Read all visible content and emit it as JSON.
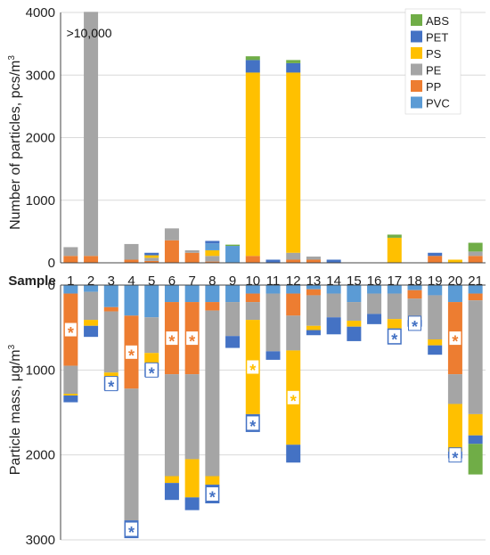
{
  "chart_data": [
    {
      "type": "bar",
      "stacked": true,
      "ylabel_parts": [
        "Number of particles, pcs/m",
        "3"
      ],
      "ylim": [
        0,
        4000
      ],
      "yticks": [
        0,
        1000,
        2000,
        3000,
        4000
      ],
      "categories": [
        "1",
        "2",
        "3",
        "4",
        "5",
        "6",
        "7",
        "8",
        "9",
        "10",
        "11",
        "12",
        "13",
        "14",
        "15",
        "16",
        "17",
        "18",
        "19",
        "20",
        "21"
      ],
      "series": [
        {
          "name": "PP",
          "values": [
            110,
            110,
            0,
            50,
            30,
            360,
            160,
            20,
            0,
            110,
            0,
            50,
            50,
            0,
            0,
            0,
            0,
            0,
            110,
            0,
            110
          ]
        },
        {
          "name": "PE",
          "values": [
            140,
            3900,
            0,
            250,
            50,
            190,
            40,
            90,
            0,
            0,
            0,
            110,
            50,
            0,
            0,
            0,
            0,
            0,
            0,
            0,
            70
          ]
        },
        {
          "name": "PS",
          "values": [
            0,
            0,
            0,
            0,
            40,
            0,
            0,
            90,
            0,
            2930,
            0,
            2880,
            0,
            0,
            0,
            0,
            400,
            0,
            0,
            50,
            0
          ]
        },
        {
          "name": "PVC",
          "values": [
            0,
            0,
            0,
            0,
            0,
            0,
            0,
            110,
            270,
            0,
            0,
            0,
            0,
            0,
            0,
            0,
            0,
            0,
            0,
            0,
            0
          ]
        },
        {
          "name": "PET",
          "values": [
            0,
            0,
            0,
            0,
            40,
            0,
            0,
            40,
            0,
            200,
            50,
            150,
            0,
            50,
            0,
            0,
            0,
            0,
            50,
            0,
            0
          ]
        },
        {
          "name": "ABS",
          "values": [
            0,
            0,
            0,
            0,
            0,
            0,
            0,
            0,
            20,
            60,
            0,
            50,
            0,
            0,
            0,
            0,
            50,
            0,
            0,
            0,
            140
          ]
        }
      ],
      "annotations": [
        {
          "category": "2",
          "text": ">10,000"
        }
      ],
      "legend_position": "top-right"
    },
    {
      "type": "bar",
      "stacked": true,
      "inverted": true,
      "ylabel_parts": [
        "Particle mass, μg/m",
        "3"
      ],
      "ylim": [
        0,
        3000
      ],
      "yticks": [
        0,
        1000,
        2000,
        3000
      ],
      "categories": [
        "1",
        "2",
        "3",
        "4",
        "5",
        "6",
        "7",
        "8",
        "9",
        "10",
        "11",
        "12",
        "13",
        "14",
        "15",
        "16",
        "17",
        "18",
        "19",
        "20",
        "21"
      ],
      "series": [
        {
          "name": "PVC",
          "values": [
            100,
            80,
            260,
            360,
            380,
            200,
            200,
            200,
            200,
            100,
            100,
            100,
            50,
            100,
            200,
            100,
            100,
            60,
            120,
            200,
            100
          ]
        },
        {
          "name": "PP",
          "values": [
            850,
            0,
            50,
            860,
            0,
            850,
            850,
            100,
            0,
            100,
            0,
            260,
            70,
            0,
            0,
            0,
            0,
            100,
            0,
            850,
            80
          ]
        },
        {
          "name": "PE",
          "values": [
            330,
            330,
            720,
            1550,
            420,
            1200,
            1000,
            1950,
            400,
            210,
            680,
            410,
            360,
            280,
            220,
            240,
            300,
            250,
            520,
            350,
            1340
          ]
        },
        {
          "name": "PS",
          "values": [
            20,
            70,
            50,
            0,
            120,
            80,
            450,
            100,
            0,
            1110,
            0,
            1110,
            50,
            0,
            70,
            0,
            110,
            0,
            70,
            560,
            250
          ]
        },
        {
          "name": "PET",
          "values": [
            80,
            130,
            160,
            210,
            160,
            200,
            150,
            220,
            140,
            210,
            100,
            210,
            60,
            200,
            170,
            120,
            190,
            80,
            110,
            80,
            100
          ]
        },
        {
          "name": "ABS",
          "values": [
            0,
            0,
            0,
            0,
            0,
            0,
            0,
            0,
            0,
            0,
            0,
            0,
            0,
            0,
            0,
            0,
            0,
            0,
            0,
            0,
            360
          ]
        }
      ],
      "star_markers": [
        {
          "category": "1",
          "series": "PP"
        },
        {
          "category": "3",
          "series": "PET"
        },
        {
          "category": "4",
          "series": "PP"
        },
        {
          "category": "4",
          "series": "PET"
        },
        {
          "category": "5",
          "series": "PET"
        },
        {
          "category": "6",
          "series": "PP"
        },
        {
          "category": "7",
          "series": "PP"
        },
        {
          "category": "8",
          "series": "PET"
        },
        {
          "category": "10",
          "series": "PS"
        },
        {
          "category": "10",
          "series": "PET"
        },
        {
          "category": "12",
          "series": "PS"
        },
        {
          "category": "17",
          "series": "PET"
        },
        {
          "category": "18",
          "series": "PET"
        },
        {
          "category": "20",
          "series": "PP"
        },
        {
          "category": "20",
          "series": "PET"
        }
      ]
    }
  ],
  "sample_label": "Sample",
  "star_symbol": "*",
  "legend": [
    "ABS",
    "PET",
    "PS",
    "PE",
    "PP",
    "PVC"
  ],
  "colors": {
    "ABS": "#70ad47",
    "PET": "#4472c4",
    "PS": "#ffc000",
    "PE": "#a5a5a5",
    "PP": "#ed7d31",
    "PVC": "#5b9bd5",
    "grid": "#d9d9d9",
    "axis": "#444444"
  }
}
